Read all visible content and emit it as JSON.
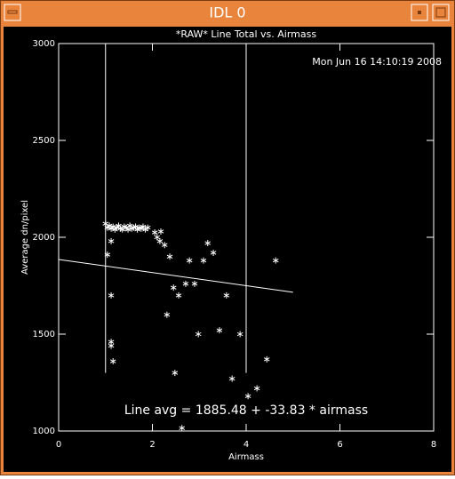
{
  "window": {
    "title": "IDL 0"
  },
  "chart_data": {
    "type": "scatter",
    "title": "*RAW* Line Total vs. Airmass",
    "date": "Mon Jun 16 14:10:19 2008",
    "x_label": "Airmass",
    "y_label": "Average dn/pixel",
    "annotation": "Line avg = 1885.48 + -33.83 * airmass",
    "xlim": [
      0,
      8
    ],
    "ylim": [
      1000,
      3000
    ],
    "xticks": [
      0,
      2,
      4,
      6,
      8
    ],
    "yticks": [
      1000,
      1500,
      2000,
      2500,
      3000
    ],
    "color": "#ffffff",
    "x": [
      1.04,
      1.12,
      1.12,
      1.12,
      1.12,
      1.16,
      1.0,
      1.04,
      1.08,
      1.12,
      1.16,
      1.2,
      1.24,
      1.28,
      1.32,
      1.36,
      1.4,
      1.44,
      1.48,
      1.52,
      1.56,
      1.6,
      1.64,
      1.68,
      1.72,
      1.76,
      1.8,
      1.85,
      1.9,
      2.05,
      2.1,
      2.16,
      2.18,
      2.26,
      2.37,
      2.45,
      2.31,
      2.56,
      2.48,
      2.63,
      2.71,
      2.79,
      2.9,
      2.98,
      3.09,
      3.18,
      3.3,
      3.43,
      3.58,
      3.7,
      3.87,
      4.04,
      4.23,
      4.44,
      4.63
    ],
    "values": [
      1910,
      1980,
      1700,
      1460,
      1440,
      1360,
      2070,
      2050,
      2060,
      2045,
      2055,
      2040,
      2050,
      2060,
      2045,
      2040,
      2055,
      2050,
      2040,
      2060,
      2045,
      2050,
      2055,
      2040,
      2050,
      2045,
      2055,
      2040,
      2050,
      2025,
      2000,
      1980,
      2030,
      1960,
      1900,
      1740,
      1600,
      1700,
      1300,
      1015,
      1760,
      1880,
      1760,
      1500,
      1880,
      1970,
      1920,
      1520,
      1700,
      1270,
      1500,
      1180,
      1220,
      1370,
      1880
    ],
    "vlines": [
      {
        "x": 1,
        "ymin": 1300,
        "ymax": 3000
      },
      {
        "x": 4,
        "ymin": 1300,
        "ymax": 3000
      }
    ],
    "fit": {
      "intercept": 1885.48,
      "slope": -33.83,
      "xrange": [
        0,
        5
      ]
    }
  }
}
